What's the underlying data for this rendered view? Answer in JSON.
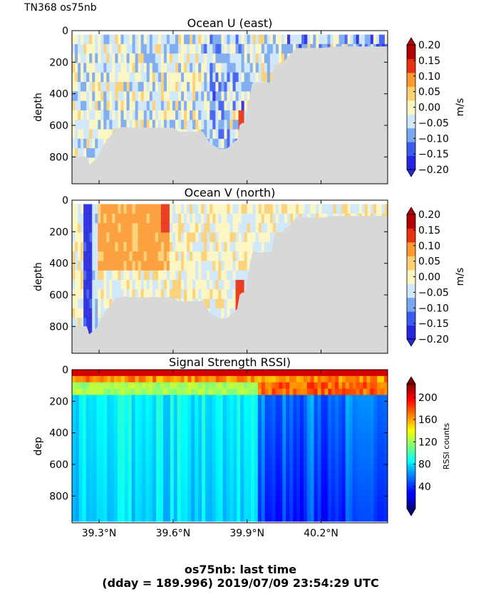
{
  "header": {
    "label": "TN368 os75nb"
  },
  "footer": {
    "line1": "os75nb: last time",
    "line2": "(dday = 189.996) 2019/07/09 23:54:29 UTC"
  },
  "chart_data": [
    {
      "type": "heatmap",
      "title": "Ocean U (east)",
      "xlabel": "",
      "ylabel": "depth",
      "x_ticks": [
        "39.3°N",
        "39.6°N",
        "39.9°N",
        "40.2°N"
      ],
      "y_ticks": [
        "0",
        "200",
        "400",
        "600",
        "800"
      ],
      "xlim": [
        39.19,
        40.47
      ],
      "ylim": [
        970,
        0
      ],
      "grid": false,
      "colorbar": {
        "label": "m/s",
        "range": [
          -0.2,
          0.2
        ],
        "ticks": [
          "0.20",
          "0.15",
          "0.10",
          "0.05",
          "0.00",
          "−0.05",
          "−0.10",
          "−0.15",
          "−0.20"
        ],
        "levels": [
          -0.2,
          -0.15,
          -0.1,
          -0.05,
          0.0,
          0.05,
          0.1,
          0.15,
          0.2
        ],
        "colors": [
          "#2626e0",
          "#3c5cf0",
          "#7aa8f0",
          "#cfe8fa",
          "#fff7c0",
          "#ffd070",
          "#ff9a30",
          "#ea3010",
          "#b00000"
        ]
      },
      "seafloor_depth": [
        [
          39.19,
          795
        ],
        [
          39.25,
          800
        ],
        [
          39.26,
          850
        ],
        [
          39.29,
          810
        ],
        [
          39.32,
          720
        ],
        [
          39.34,
          680
        ],
        [
          39.37,
          620
        ],
        [
          39.4,
          610
        ],
        [
          39.43,
          615
        ],
        [
          39.6,
          615
        ],
        [
          39.62,
          640
        ],
        [
          39.72,
          640
        ],
        [
          39.75,
          715
        ],
        [
          39.79,
          750
        ],
        [
          39.82,
          745
        ],
        [
          39.86,
          690
        ],
        [
          39.87,
          600
        ],
        [
          39.88,
          585
        ],
        [
          39.89,
          585
        ],
        [
          39.92,
          340
        ],
        [
          39.93,
          330
        ],
        [
          40.0,
          330
        ],
        [
          40.01,
          215
        ],
        [
          40.04,
          210
        ],
        [
          40.1,
          110
        ],
        [
          40.2,
          110
        ],
        [
          40.26,
          100
        ],
        [
          40.47,
          100
        ]
      ],
      "seafloor_color": "#d8d8d8"
    },
    {
      "type": "heatmap",
      "title": "Ocean V (north)",
      "xlabel": "",
      "ylabel": "depth",
      "x_ticks": [
        "39.3°N",
        "39.6°N",
        "39.9°N",
        "40.2°N"
      ],
      "y_ticks": [
        "0",
        "200",
        "400",
        "600",
        "800"
      ],
      "xlim": [
        39.19,
        40.47
      ],
      "ylim": [
        970,
        0
      ],
      "grid": false,
      "colorbar": {
        "label": "m/s",
        "range": [
          -0.2,
          0.2
        ],
        "ticks": [
          "0.20",
          "0.15",
          "0.10",
          "0.05",
          "0.00",
          "−0.05",
          "−0.10",
          "−0.15",
          "−0.20"
        ],
        "levels": [
          -0.2,
          -0.15,
          -0.1,
          -0.05,
          0.0,
          0.05,
          0.1,
          0.15,
          0.2
        ],
        "colors": [
          "#2626e0",
          "#3c5cf0",
          "#7aa8f0",
          "#cfe8fa",
          "#fff7c0",
          "#ffd070",
          "#ff9a30",
          "#ea3010",
          "#b00000"
        ]
      },
      "seafloor_depth": [
        [
          39.19,
          795
        ],
        [
          39.25,
          800
        ],
        [
          39.26,
          850
        ],
        [
          39.29,
          810
        ],
        [
          39.32,
          720
        ],
        [
          39.34,
          680
        ],
        [
          39.37,
          620
        ],
        [
          39.4,
          610
        ],
        [
          39.43,
          615
        ],
        [
          39.6,
          615
        ],
        [
          39.62,
          640
        ],
        [
          39.72,
          640
        ],
        [
          39.75,
          715
        ],
        [
          39.79,
          750
        ],
        [
          39.82,
          745
        ],
        [
          39.86,
          690
        ],
        [
          39.87,
          600
        ],
        [
          39.88,
          585
        ],
        [
          39.89,
          585
        ],
        [
          39.92,
          340
        ],
        [
          39.93,
          330
        ],
        [
          40.0,
          330
        ],
        [
          40.01,
          215
        ],
        [
          40.04,
          210
        ],
        [
          40.1,
          110
        ],
        [
          40.2,
          110
        ],
        [
          40.26,
          100
        ],
        [
          40.47,
          100
        ]
      ],
      "seafloor_color": "#d8d8d8"
    },
    {
      "type": "heatmap",
      "title": "Signal Strength RSSI)",
      "xlabel": "",
      "ylabel": "dep",
      "x_ticks": [
        "39.3°N",
        "39.6°N",
        "39.9°N",
        "40.2°N"
      ],
      "y_ticks": [
        "0",
        "200",
        "400",
        "600",
        "800"
      ],
      "xlim": [
        39.19,
        40.47
      ],
      "ylim": [
        970,
        0
      ],
      "grid": false,
      "colorbar": {
        "label": "RSSI counts",
        "range": [
          0,
          224
        ],
        "ticks": [
          "200",
          "160",
          "120",
          "80",
          "40"
        ],
        "tick_values": [
          200,
          160,
          120,
          80,
          40
        ]
      }
    }
  ]
}
